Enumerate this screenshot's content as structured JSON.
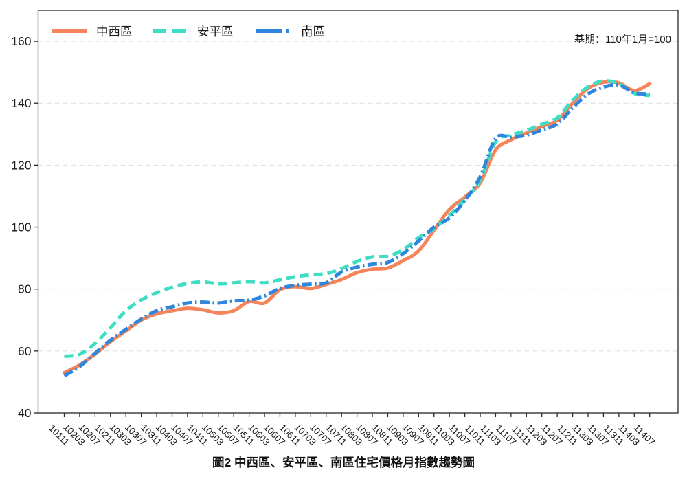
{
  "title": "圖2 中西區、安平區、南區住宅價格月指數趨勢圖",
  "note": "基期：110年1月=100",
  "chart_data": {
    "type": "line",
    "title": "圖2 中西區、安平區、南區住宅價格月指數趨勢圖",
    "annotation": "基期：110年1月=100",
    "xlabel": "",
    "ylabel": "",
    "ylim": [
      40,
      170
    ],
    "yticks": [
      40,
      60,
      80,
      100,
      120,
      140,
      160
    ],
    "grid": true,
    "legend_position": "top-left",
    "colors": {
      "grid": "#dadfdf",
      "spine": "#262626",
      "tick_text": "#1a1a1a"
    },
    "categories": [
      "10111",
      "10203",
      "10207",
      "10211",
      "10303",
      "10307",
      "10311",
      "10403",
      "10407",
      "10411",
      "10503",
      "10507",
      "10511",
      "10603",
      "10607",
      "10611",
      "10703",
      "10707",
      "10711",
      "10803",
      "10807",
      "10811",
      "10903",
      "10907",
      "10911",
      "11003",
      "11007",
      "11011",
      "11103",
      "11107",
      "11111",
      "11203",
      "11207",
      "11211",
      "11303",
      "11307",
      "11311",
      "11403",
      "11407"
    ],
    "series": [
      {
        "name": "中西區",
        "color": "#F6845B",
        "style": "solid",
        "values": [
          53.0,
          55.5,
          59.0,
          63.0,
          66.5,
          70.0,
          72.0,
          73.0,
          73.8,
          73.3,
          72.3,
          73.0,
          76.0,
          75.5,
          79.8,
          80.8,
          80.2,
          81.5,
          83.1,
          85.3,
          86.4,
          86.8,
          89.2,
          92.3,
          99.0,
          105.7,
          109.7,
          114.3,
          124.9,
          128.2,
          130.4,
          132.5,
          134.5,
          140.0,
          144.8,
          146.8,
          146.6,
          144.1,
          146.3
        ]
      },
      {
        "name": "安平區",
        "color": "#3EDDC4",
        "style": "dashed",
        "values": [
          58.3,
          59.0,
          62.5,
          67.5,
          73.0,
          76.5,
          78.8,
          80.6,
          81.8,
          82.3,
          81.7,
          82.0,
          82.4,
          82.0,
          83.0,
          84.0,
          84.6,
          85.0,
          86.6,
          88.9,
          90.4,
          90.6,
          92.7,
          96.6,
          99.5,
          103.8,
          108.9,
          115.1,
          127.5,
          129.7,
          131.2,
          133.2,
          135.3,
          141.0,
          145.3,
          147.2,
          146.3,
          143.2,
          142.5
        ]
      },
      {
        "name": "南區",
        "color": "#2E86DD",
        "style": "dash-dot",
        "values": [
          52.0,
          55.0,
          59.3,
          63.5,
          67.0,
          70.3,
          73.0,
          74.3,
          75.5,
          75.8,
          75.5,
          76.2,
          76.4,
          77.8,
          80.2,
          81.2,
          81.6,
          82.0,
          85.5,
          87.1,
          88.0,
          88.6,
          91.5,
          95.5,
          100.0,
          103.0,
          108.6,
          116.3,
          128.6,
          129.0,
          129.7,
          131.4,
          133.3,
          138.5,
          143.0,
          145.2,
          145.9,
          143.4,
          143.0
        ]
      }
    ]
  }
}
